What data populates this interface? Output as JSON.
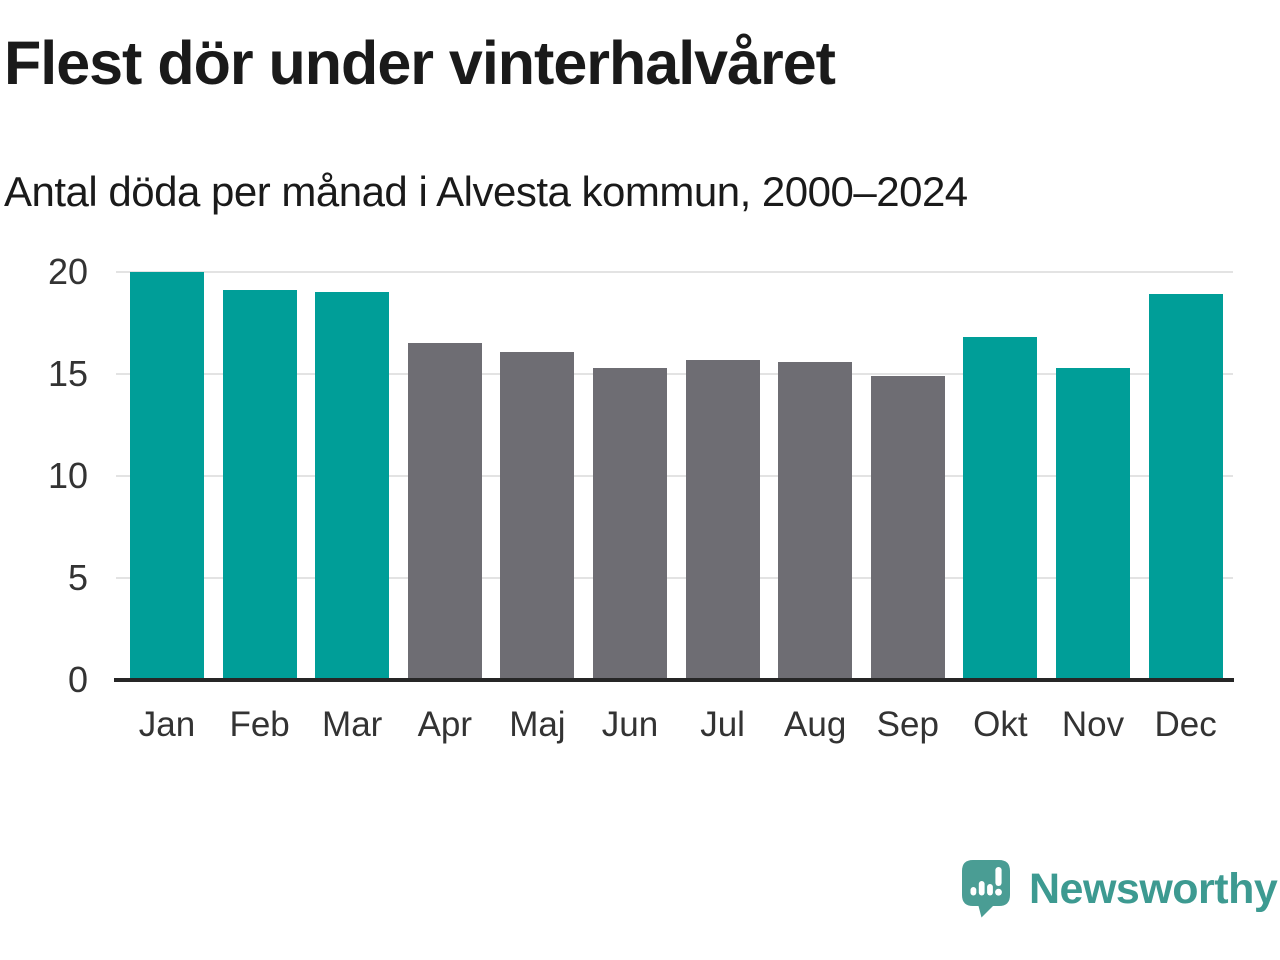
{
  "chart_data": {
    "type": "bar",
    "title": "Flest dör under vinterhalvåret",
    "subtitle": "Antal döda per månad i Alvesta kommun, 2000–2024",
    "categories": [
      "Jan",
      "Feb",
      "Mar",
      "Apr",
      "Maj",
      "Jun",
      "Jul",
      "Aug",
      "Sep",
      "Okt",
      "Nov",
      "Dec"
    ],
    "values": [
      20.0,
      19.1,
      19.0,
      16.5,
      16.1,
      15.3,
      15.7,
      15.6,
      14.9,
      16.8,
      15.3,
      18.9
    ],
    "bar_colors": [
      "winter",
      "winter",
      "winter",
      "summer",
      "summer",
      "summer",
      "summer",
      "summer",
      "summer",
      "winter",
      "winter",
      "winter"
    ],
    "colors": {
      "winter": "#009e98",
      "summer": "#6e6d73"
    },
    "yticks": [
      0,
      5,
      10,
      15,
      20
    ],
    "ylim": [
      0,
      20
    ],
    "xlabel": "",
    "ylabel": "",
    "grid": "horizontal",
    "grid_color": "#e3e3e3",
    "axis_color": "#262626",
    "label_color": "#333333",
    "legend": "none"
  },
  "footer": {
    "brand": "Newsworthy",
    "brand_color": "#3d9a91",
    "logo_color": "#4a9d94",
    "logo_icon": "speech-bubble-bar-chart"
  }
}
